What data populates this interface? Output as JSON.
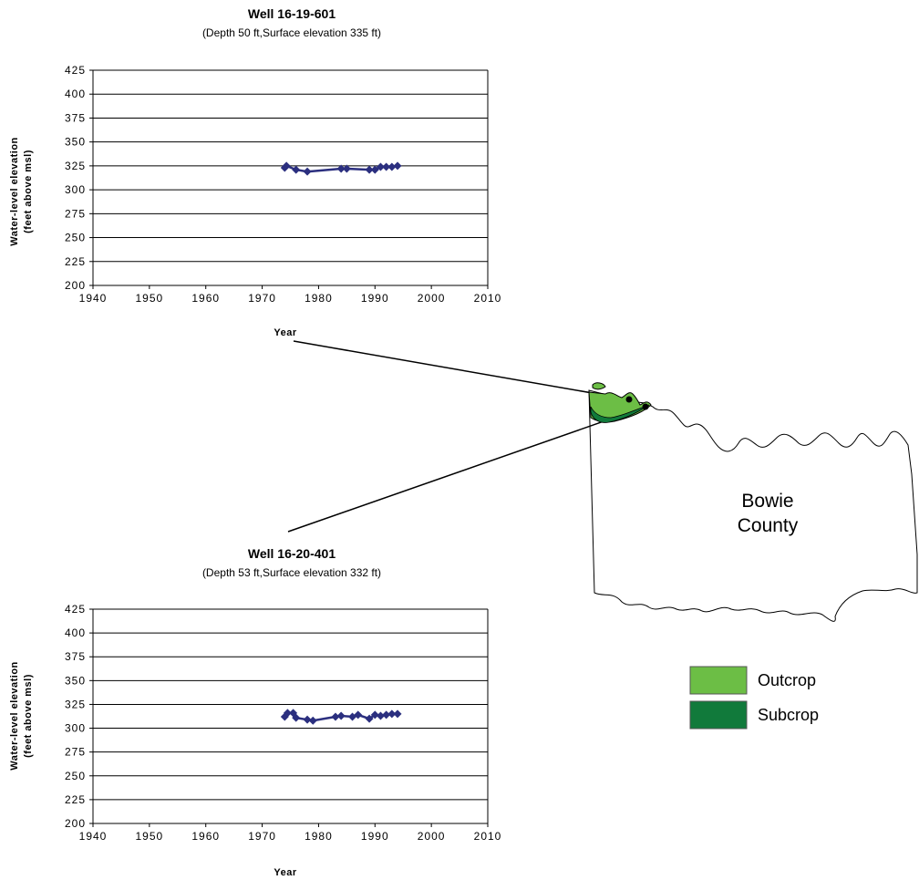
{
  "chart_data": [
    {
      "type": "line",
      "title": "Well 16-19-601",
      "subtitle": "(Depth 50 ft,Surface elevation 335 ft)",
      "xlabel": "Year",
      "ylabel": "Water-level elevation",
      "ylabel2": "(feet above msl)",
      "xlim": [
        1940,
        2010
      ],
      "ylim": [
        200,
        425
      ],
      "xticks": [
        1940,
        1950,
        1960,
        1970,
        1980,
        1990,
        2000,
        2010
      ],
      "yticks": [
        200,
        225,
        250,
        275,
        300,
        325,
        350,
        375,
        400,
        425
      ],
      "grid": "horizontal",
      "series": [
        {
          "color": "#2b2f7f",
          "marker": "diamond",
          "x": [
            1974,
            1974.3,
            1976,
            1978,
            1984,
            1985,
            1989,
            1990,
            1991,
            1992,
            1993,
            1994
          ],
          "y": [
            323,
            325,
            321,
            319,
            322,
            322,
            321,
            321,
            324,
            324,
            324,
            325
          ]
        }
      ]
    },
    {
      "type": "line",
      "title": "Well 16-20-401",
      "subtitle": "(Depth 53 ft,Surface elevation 332 ft)",
      "xlabel": "Year",
      "ylabel": "Water-level elevation",
      "ylabel2": "(feet above msl)",
      "xlim": [
        1940,
        2010
      ],
      "ylim": [
        200,
        425
      ],
      "xticks": [
        1940,
        1950,
        1960,
        1970,
        1980,
        1990,
        2000,
        2010
      ],
      "yticks": [
        200,
        225,
        250,
        275,
        300,
        325,
        350,
        375,
        400,
        425
      ],
      "grid": "horizontal",
      "series": [
        {
          "color": "#2b2f7f",
          "marker": "diamond",
          "x": [
            1974,
            1974.5,
            1975.5,
            1976,
            1978,
            1979,
            1983,
            1984,
            1986,
            1987,
            1989,
            1990,
            1991,
            1992,
            1993,
            1994
          ],
          "y": [
            312,
            316,
            316,
            311,
            309,
            308,
            312,
            313,
            312,
            314,
            310,
            314,
            313,
            314,
            315,
            315
          ]
        }
      ]
    }
  ],
  "map": {
    "county_name_line1": "Bowie",
    "county_name_line2": "County",
    "colors": {
      "outcrop": "#6cbe45",
      "subcrop": "#117a3b",
      "outline": "#000000"
    }
  },
  "legend": {
    "items": [
      {
        "label": "Outcrop",
        "color": "#6cbe45"
      },
      {
        "label": "Subcrop",
        "color": "#117a3b"
      }
    ]
  }
}
